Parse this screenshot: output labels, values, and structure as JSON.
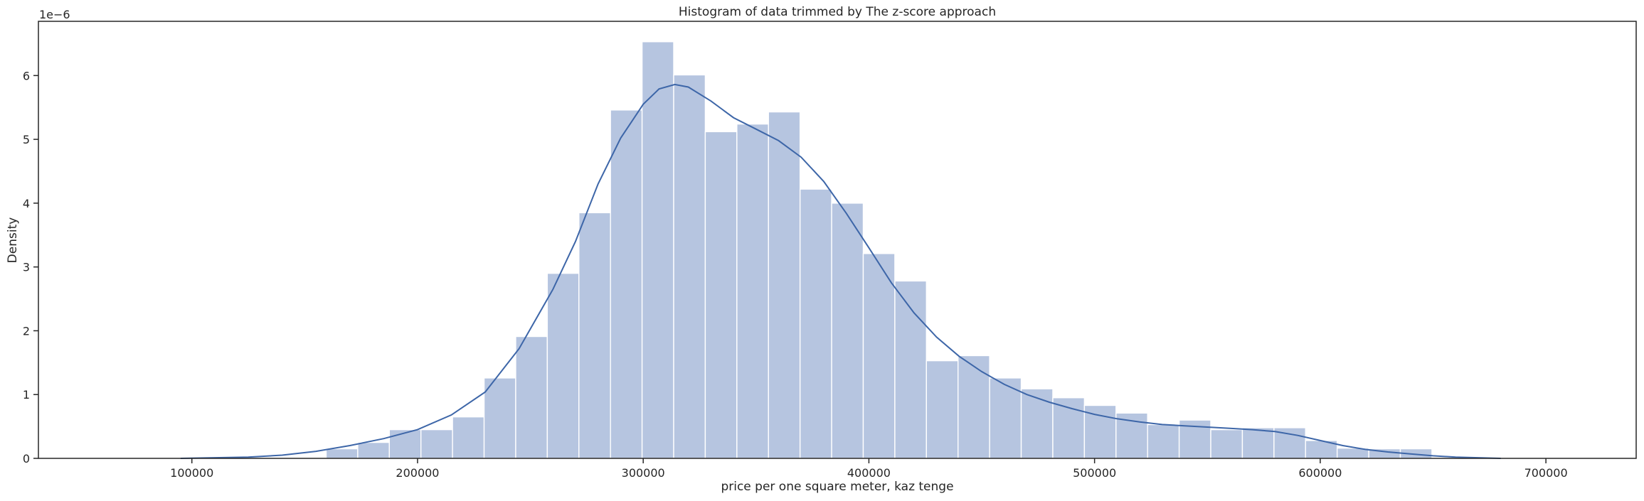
{
  "chart_data": {
    "type": "bar",
    "title": "Histogram of data trimmed by The z-score approach",
    "xlabel": "price per one square meter, kaz tenge",
    "ylabel": "Density",
    "y_offset_label": "1e−6",
    "y_scale": 1e-06,
    "xlim": [
      32000,
      740000
    ],
    "ylim": [
      0,
      6.85
    ],
    "xticks": [
      100000,
      200000,
      300000,
      400000,
      500000,
      600000,
      700000
    ],
    "xtick_labels": [
      "100000",
      "200000",
      "300000",
      "400000",
      "500000",
      "600000",
      "700000"
    ],
    "yticks": [
      0,
      1,
      2,
      3,
      4,
      5,
      6
    ],
    "ytick_labels": [
      "0",
      "1",
      "2",
      "3",
      "4",
      "5",
      "6"
    ],
    "bin_edges": [
      159500,
      173500,
      187500,
      201500,
      215500,
      229500,
      243500,
      257500,
      271500,
      285500,
      299500,
      313500,
      327500,
      341500,
      355500,
      369500,
      383500,
      397500,
      411500,
      425500,
      439500,
      453500,
      467500,
      481500,
      495500,
      509500,
      523500,
      537500,
      551500,
      565500,
      579500,
      593500,
      607500,
      621500,
      635500,
      649500
    ],
    "values": [
      0.15,
      0.25,
      0.45,
      0.45,
      0.65,
      1.26,
      1.91,
      2.9,
      3.85,
      5.46,
      6.53,
      6.01,
      5.12,
      5.24,
      5.43,
      4.22,
      4.0,
      3.21,
      2.78,
      1.53,
      1.61,
      1.26,
      1.09,
      0.95,
      0.83,
      0.71,
      0.53,
      0.6,
      0.45,
      0.48,
      0.48,
      0.28,
      0.16,
      0.15,
      0.15
    ],
    "kde": {
      "x": [
        95000,
        110000,
        125000,
        140000,
        155000,
        170000,
        185000,
        200000,
        215000,
        230000,
        245000,
        260000,
        270000,
        280000,
        290000,
        300000,
        307000,
        314000,
        320000,
        330000,
        340000,
        350000,
        360000,
        370000,
        380000,
        390000,
        400000,
        410000,
        420000,
        430000,
        440000,
        450000,
        460000,
        470000,
        480000,
        490000,
        500000,
        510000,
        520000,
        530000,
        540000,
        550000,
        560000,
        570000,
        580000,
        590000,
        600000,
        610000,
        620000,
        630000,
        640000,
        650000,
        660000,
        670000,
        680000
      ],
      "y": [
        0.0,
        0.01,
        0.02,
        0.05,
        0.11,
        0.2,
        0.31,
        0.45,
        0.68,
        1.04,
        1.72,
        2.65,
        3.4,
        4.3,
        5.02,
        5.55,
        5.79,
        5.86,
        5.82,
        5.6,
        5.34,
        5.16,
        4.98,
        4.72,
        4.34,
        3.84,
        3.3,
        2.75,
        2.28,
        1.9,
        1.6,
        1.36,
        1.16,
        1.0,
        0.88,
        0.78,
        0.69,
        0.62,
        0.57,
        0.53,
        0.51,
        0.49,
        0.47,
        0.45,
        0.42,
        0.36,
        0.28,
        0.2,
        0.14,
        0.1,
        0.07,
        0.04,
        0.02,
        0.01,
        0.0
      ]
    },
    "colors": {
      "bar": "#b6c5e0",
      "kde": "#3d66a8",
      "axis": "#262626"
    },
    "grid": false
  }
}
